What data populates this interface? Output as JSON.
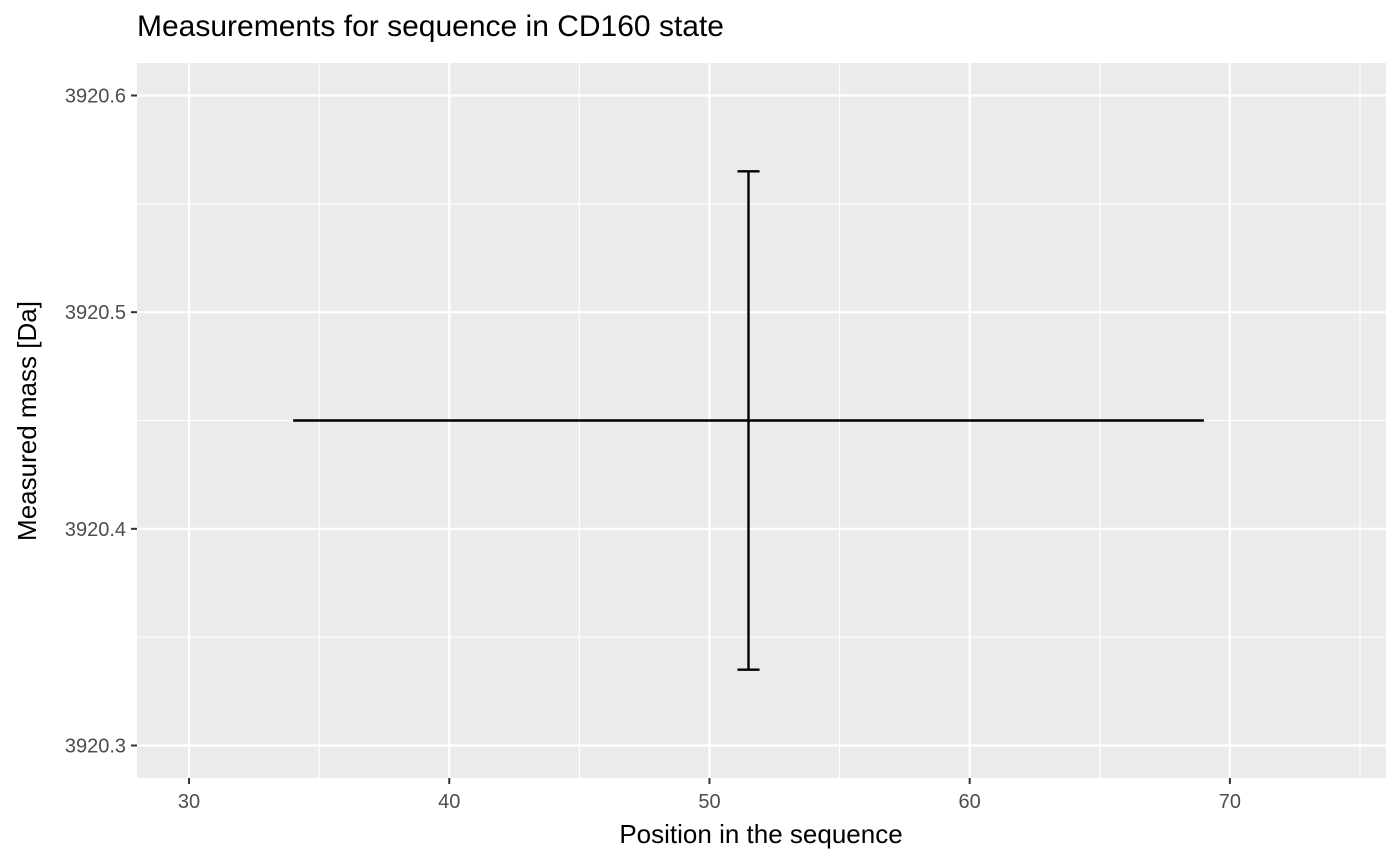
{
  "chart_data": {
    "type": "errorbar",
    "title": "Measurements for sequence in CD160 state",
    "xlabel": "Position in the sequence",
    "ylabel": "Measured mass [Da]",
    "xlim": [
      28,
      76
    ],
    "ylim": [
      3920.285,
      3920.615
    ],
    "x_ticks": [
      30,
      40,
      50,
      60,
      70
    ],
    "y_ticks": [
      3920.3,
      3920.4,
      3920.5,
      3920.6
    ],
    "x_tick_labels": [
      "30",
      "40",
      "50",
      "60",
      "70"
    ],
    "y_tick_labels": [
      "3920.3",
      "3920.4",
      "3920.5",
      "3920.6"
    ],
    "grid": true,
    "points": [
      {
        "x_start": 34,
        "x_end": 69,
        "x_center": 51.5,
        "y": 3920.45,
        "y_min": 3920.335,
        "y_max": 3920.565
      }
    ],
    "colors": {
      "panel_background": "#EBEBEB",
      "grid": "#FFFFFF",
      "mark": "#000000",
      "tick_label": "#4D4D4D",
      "axis_tick": "#333333"
    }
  }
}
